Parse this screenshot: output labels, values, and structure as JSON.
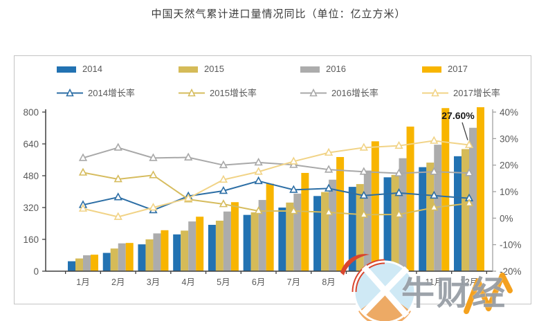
{
  "title": "中国天然气累计进口量情况同比（单位：亿立方米）",
  "watermark": {
    "text": "牛财经"
  },
  "chart_data": {
    "type": "bar+line",
    "title": "中国天然气累计进口量情况同比",
    "unit": "亿立方米",
    "legend_position": "top-inside",
    "grid": false,
    "categories": [
      "1月",
      "2月",
      "3月",
      "4月",
      "5月",
      "6月",
      "7月",
      "8月",
      "9月",
      "10月",
      "11月",
      "12月"
    ],
    "bar_series": [
      {
        "name": "2014",
        "color": "#2272B2",
        "values": [
          50,
          92,
          135,
          185,
          233,
          283,
          320,
          378,
          424,
          472,
          523,
          578
        ]
      },
      {
        "name": "2015",
        "color": "#D5BB58",
        "values": [
          64,
          114,
          160,
          204,
          254,
          296,
          345,
          398,
          438,
          484,
          546,
          614
        ]
      },
      {
        "name": "2016",
        "color": "#ACACAC",
        "values": [
          80,
          140,
          190,
          250,
          300,
          358,
          390,
          460,
          506,
          568,
          636,
          721
        ]
      },
      {
        "name": "2017",
        "color": "#F8B500",
        "values": [
          83,
          142,
          206,
          274,
          347,
          440,
          494,
          574,
          653,
          727,
          820,
          920
        ]
      }
    ],
    "line_series": [
      {
        "name": "2014增长率",
        "color": "#2C6EA5",
        "values": [
          5.0,
          7.9,
          3.0,
          8.3,
          10.3,
          14.0,
          10.7,
          11.2,
          8.5,
          9.5,
          8.5,
          7.5
        ]
      },
      {
        "name": "2015增长率",
        "color": "#D6BC5E",
        "values": [
          17.2,
          14.7,
          16.2,
          7.1,
          5.3,
          2.7,
          2.7,
          2.2,
          1.3,
          1.4,
          4.0,
          5.6
        ]
      },
      {
        "name": "2016增长率",
        "color": "#A8A8A8",
        "values": [
          22.7,
          26.6,
          22.7,
          22.9,
          20.0,
          21.0,
          20.1,
          18.3,
          17.5,
          16.9,
          17.5,
          17.0
        ]
      },
      {
        "name": "2017增长率",
        "color": "#F1D386",
        "values": [
          3.6,
          0.5,
          4.0,
          7.5,
          14.5,
          17.5,
          21.4,
          24.7,
          26.6,
          27.3,
          29.2,
          27.6
        ]
      }
    ],
    "left_axis": {
      "range": [
        0,
        800
      ],
      "ticks": [
        0,
        160,
        320,
        480,
        640,
        800
      ]
    },
    "right_axis": {
      "range": [
        -20,
        40
      ],
      "ticks": [
        -20,
        -10,
        0,
        10,
        20,
        30,
        40
      ],
      "format": "percent"
    },
    "annotation": {
      "text": "27.60%",
      "series": "2017增长率",
      "category": "12月",
      "value": 27.6
    }
  }
}
